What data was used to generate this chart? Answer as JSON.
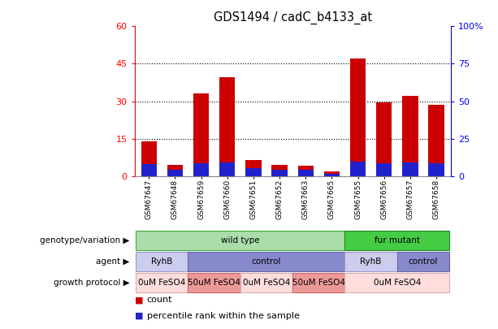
{
  "title": "GDS1494 / cadC_b4133_at",
  "samples": [
    "GSM67647",
    "GSM67648",
    "GSM67659",
    "GSM67660",
    "GSM67651",
    "GSM67652",
    "GSM67663",
    "GSM67665",
    "GSM67655",
    "GSM67656",
    "GSM67657",
    "GSM67658"
  ],
  "counts": [
    14.0,
    4.5,
    33.0,
    39.5,
    6.5,
    4.5,
    4.0,
    2.0,
    47.0,
    29.5,
    32.0,
    28.5
  ],
  "percentile_ranks": [
    8.0,
    4.0,
    8.5,
    9.0,
    5.0,
    4.0,
    4.0,
    1.5,
    9.5,
    8.5,
    9.0,
    8.5
  ],
  "ylim_left": [
    0,
    60
  ],
  "ylim_right": [
    0,
    100
  ],
  "yticks_left": [
    0,
    15,
    30,
    45,
    60
  ],
  "yticks_right": [
    0,
    25,
    50,
    75,
    100
  ],
  "ytick_labels_left": [
    "0",
    "15",
    "30",
    "45",
    "60"
  ],
  "ytick_labels_right": [
    "0",
    "25",
    "50",
    "75",
    "100%"
  ],
  "bar_color": "#cc0000",
  "percentile_color": "#2222cc",
  "genotype_variation": {
    "label": "genotype/variation",
    "groups": [
      {
        "text": "wild type",
        "start": 0,
        "end": 7,
        "color": "#aaddaa",
        "edge_color": "#44aa44"
      },
      {
        "text": "fur mutant",
        "start": 8,
        "end": 11,
        "color": "#44cc44",
        "edge_color": "#228822"
      }
    ]
  },
  "agent": {
    "label": "agent",
    "groups": [
      {
        "text": "RyhB",
        "start": 0,
        "end": 1,
        "color": "#ccccee",
        "edge_color": "#9999cc"
      },
      {
        "text": "control",
        "start": 2,
        "end": 7,
        "color": "#8888cc",
        "edge_color": "#6666aa"
      },
      {
        "text": "RyhB",
        "start": 8,
        "end": 9,
        "color": "#ccccee",
        "edge_color": "#9999cc"
      },
      {
        "text": "control",
        "start": 10,
        "end": 11,
        "color": "#8888cc",
        "edge_color": "#6666aa"
      }
    ]
  },
  "growth_protocol": {
    "label": "growth protocol",
    "groups": [
      {
        "text": "0uM FeSO4",
        "start": 0,
        "end": 1,
        "color": "#ffdddd",
        "edge_color": "#ddaaaa"
      },
      {
        "text": "50uM FeSO4",
        "start": 2,
        "end": 3,
        "color": "#ee9999",
        "edge_color": "#cc6666"
      },
      {
        "text": "0uM FeSO4",
        "start": 4,
        "end": 5,
        "color": "#ffdddd",
        "edge_color": "#ddaaaa"
      },
      {
        "text": "50uM FeSO4",
        "start": 6,
        "end": 7,
        "color": "#ee9999",
        "edge_color": "#cc6666"
      },
      {
        "text": "0uM FeSO4",
        "start": 8,
        "end": 11,
        "color": "#ffdddd",
        "edge_color": "#ddaaaa"
      }
    ]
  },
  "legend": [
    {
      "color": "#cc0000",
      "label": "count"
    },
    {
      "color": "#2222cc",
      "label": "percentile rank within the sample"
    }
  ]
}
